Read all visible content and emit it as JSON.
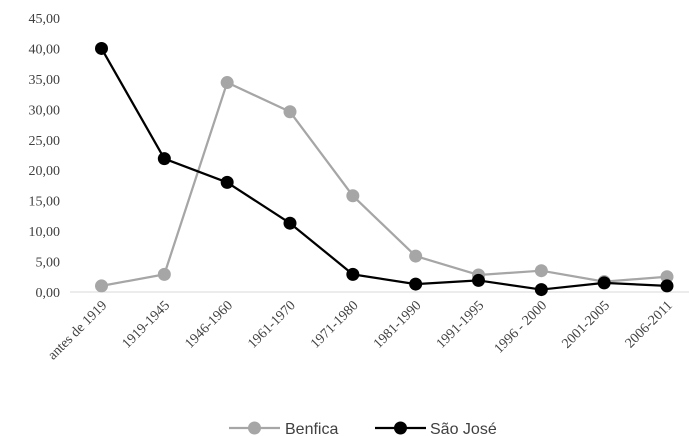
{
  "chart_data": {
    "type": "line",
    "categories": [
      "antes de 1919",
      "1919-1945",
      "1946-1960",
      "1961-1970",
      "1971-1980",
      "1981-1990",
      "1991-1995",
      "1996 - 2000",
      "2001-2005",
      "2006-2011"
    ],
    "series": [
      {
        "name": "Benfica",
        "color": "#a6a6a6",
        "values": [
          1.0,
          2.9,
          34.4,
          29.6,
          15.8,
          5.9,
          2.8,
          3.5,
          1.7,
          2.5
        ]
      },
      {
        "name": "São José",
        "color": "#000000",
        "values": [
          40.0,
          21.9,
          18.0,
          11.3,
          2.9,
          1.3,
          1.9,
          0.4,
          1.5,
          1.0
        ]
      }
    ],
    "yticks": [
      "0,00",
      "5,00",
      "10,00",
      "15,00",
      "20,00",
      "25,00",
      "30,00",
      "35,00",
      "40,00",
      "45,00"
    ],
    "ylim": [
      0,
      45
    ],
    "grid": "none",
    "legend_position": "bottom",
    "title": "",
    "xlabel": "",
    "ylabel": ""
  }
}
